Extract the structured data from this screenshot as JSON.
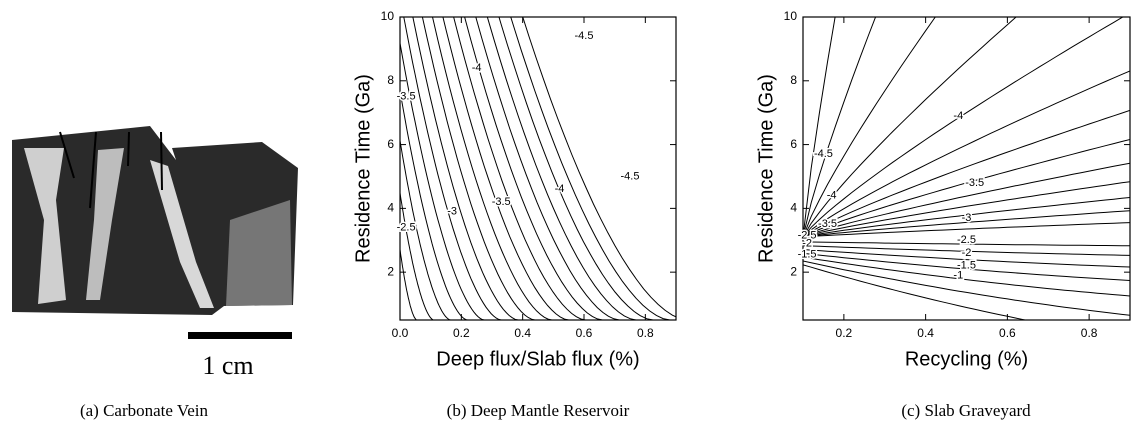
{
  "panel_a": {
    "scale_label": "1 cm",
    "caption": "(a) Carbonate Vein"
  },
  "chart_data": [
    {
      "type": "contour",
      "caption": "(b) Deep Mantle Reservoir",
      "xlabel": "Deep flux/Slab flux (%)",
      "ylabel": "Residence Time (Ga)",
      "xlim": [
        0,
        0.9
      ],
      "ylim": [
        0.5,
        10
      ],
      "xticks": [
        {
          "value": 0,
          "label": "0.0"
        },
        0.2,
        0.4,
        0.6,
        0.8
      ],
      "yticks": [
        2,
        4,
        6,
        8,
        10
      ],
      "contour_labels": [
        -4.5,
        -4,
        -3.5,
        -2.5,
        -3,
        -3.5,
        -4,
        -4.5
      ]
    },
    {
      "type": "contour",
      "caption": "(c) Slab Graveyard",
      "xlabel": "Recycling (%)",
      "ylabel": "Residence Time (Ga)",
      "xlim": [
        0.1,
        0.9
      ],
      "ylim": [
        0.5,
        10
      ],
      "xticks": [
        0.2,
        0.4,
        0.6,
        0.8
      ],
      "yticks": [
        2,
        4,
        6,
        8,
        10
      ],
      "contour_labels": [
        -4.5,
        -4,
        -4,
        -3.5,
        -3.5,
        -3,
        -2.5,
        -2,
        -1.5,
        -1,
        -2.5,
        -2,
        -1.5
      ]
    }
  ]
}
